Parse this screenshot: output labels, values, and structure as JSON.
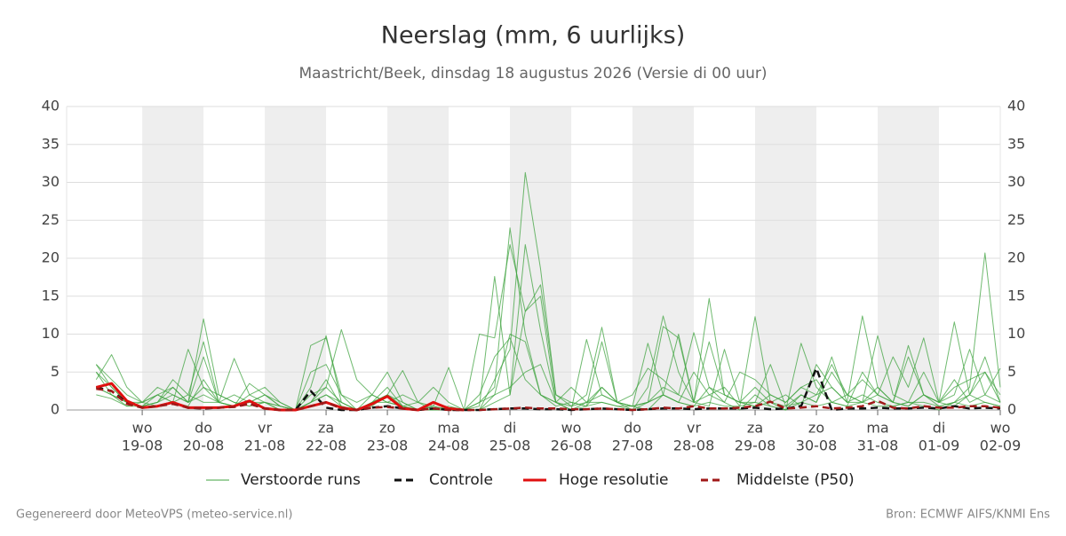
{
  "chart_data": {
    "type": "line",
    "title": "Neerslag (mm, 6 uurlijks)",
    "subtitle": "Maastricht/Beek, dinsdag 18 augustus 2026 (Versie di 00 uur)",
    "footer_left": "Gegenereerd door MeteoVPS (meteo-service.nl)",
    "footer_right": "Bron: ECMWF AIFS/KNMI Ens",
    "xlim": [
      -5.6,
      360
    ],
    "xticks": [
      {
        "value": 24,
        "label": "wo",
        "sublabel": "19-08"
      },
      {
        "value": 48,
        "label": "do",
        "sublabel": "20-08"
      },
      {
        "value": 72,
        "label": "vr",
        "sublabel": "21-08"
      },
      {
        "value": 96,
        "label": "za",
        "sublabel": "22-08"
      },
      {
        "value": 120,
        "label": "zo",
        "sublabel": "23-08"
      },
      {
        "value": 144,
        "label": "ma",
        "sublabel": "24-08"
      },
      {
        "value": 168,
        "label": "di",
        "sublabel": "25-08"
      },
      {
        "value": 192,
        "label": "wo",
        "sublabel": "26-08"
      },
      {
        "value": 216,
        "label": "do",
        "sublabel": "27-08"
      },
      {
        "value": 240,
        "label": "vr",
        "sublabel": "28-08"
      },
      {
        "value": 264,
        "label": "za",
        "sublabel": "29-08"
      },
      {
        "value": 288,
        "label": "zo",
        "sublabel": "30-08"
      },
      {
        "value": 312,
        "label": "ma",
        "sublabel": "31-08"
      },
      {
        "value": 336,
        "label": "di",
        "sublabel": "01-09"
      },
      {
        "value": 360,
        "label": "wo",
        "sublabel": "02-09"
      }
    ],
    "ylim": [
      0,
      40
    ],
    "yticks": [
      0,
      5,
      10,
      15,
      20,
      25,
      30,
      35,
      40
    ],
    "grid": true,
    "x": [
      6,
      12,
      18,
      24,
      30,
      36,
      42,
      48,
      54,
      60,
      66,
      72,
      78,
      84,
      90,
      96,
      102,
      108,
      114,
      120,
      126,
      132,
      138,
      144,
      150,
      156,
      162,
      168,
      174,
      180,
      186,
      192,
      198,
      204,
      210,
      216,
      222,
      228,
      234,
      240,
      246,
      252,
      258,
      264,
      270,
      276,
      282,
      288,
      294,
      300,
      306,
      312,
      318,
      324,
      330,
      336,
      342,
      348,
      354,
      360
    ],
    "ensemble": {
      "name": "Verstoorde runs",
      "color": "#3fa33f",
      "runs": [
        [
          5,
          3,
          1,
          0.5,
          1,
          2,
          1,
          12,
          2,
          1,
          0.5,
          1,
          0,
          0,
          3,
          9.8,
          1,
          0,
          0.5,
          2,
          0.5,
          0,
          0.5,
          0,
          0,
          0,
          4,
          8,
          31.3,
          18.6,
          2,
          0.5,
          1,
          3,
          1,
          0.5,
          0,
          2,
          1,
          0.5,
          3,
          1,
          0,
          2,
          0.5,
          0,
          8.8,
          3,
          1,
          0.5,
          5,
          2,
          1,
          0.5,
          2,
          0.5,
          1,
          3,
          20.7,
          3
        ],
        [
          6,
          4,
          2,
          1,
          0.5,
          1,
          8,
          3,
          1,
          0.5,
          1,
          2,
          0.5,
          0,
          1,
          3,
          10.6,
          4,
          2,
          1,
          0.5,
          1,
          0.5,
          0,
          0,
          10,
          9.5,
          21.8,
          13,
          15,
          1,
          0.5,
          2,
          10.9,
          1,
          0,
          3,
          12.4,
          5,
          1,
          14.7,
          2,
          1,
          0.5,
          1,
          0,
          2,
          1,
          5,
          2,
          1,
          3,
          1,
          0.5,
          2,
          1,
          11.6,
          2,
          7,
          1
        ],
        [
          4,
          7.3,
          3,
          1,
          2,
          3,
          1,
          2,
          1,
          6.8,
          2,
          1,
          0.5,
          0,
          8.5,
          9.5,
          2,
          0,
          1,
          2,
          5.2,
          1,
          0,
          0.5,
          0,
          0.5,
          17.6,
          2,
          21.8,
          10.5,
          1,
          0,
          9.3,
          2,
          1,
          0.5,
          1,
          2,
          10,
          1,
          2,
          3,
          0.5,
          12.3,
          1,
          2,
          0.5,
          6,
          3,
          1,
          12.4,
          3,
          1,
          8.5,
          2,
          1,
          4,
          1,
          2,
          5.5
        ],
        [
          3,
          2,
          1,
          0.5,
          1,
          4,
          2,
          9,
          1,
          0.5,
          2,
          3,
          1,
          0,
          1,
          4,
          0.5,
          0,
          2,
          5,
          1,
          0,
          1,
          0,
          0,
          1,
          3,
          24,
          10,
          2,
          0.5,
          1,
          0.5,
          9,
          1,
          0.5,
          1,
          11,
          9.5,
          1,
          0.5,
          8,
          1,
          1,
          6,
          0.5,
          2,
          1,
          7,
          1,
          1,
          9.8,
          2,
          1,
          5,
          1,
          0.5,
          2,
          5,
          1
        ],
        [
          2,
          1.5,
          0.5,
          1,
          3,
          2,
          1,
          7,
          1,
          0.5,
          3.5,
          2,
          0.5,
          0,
          1,
          2,
          1,
          0,
          1,
          3,
          0.5,
          0,
          0.5,
          5.6,
          0,
          0,
          1,
          2,
          13,
          16.5,
          2,
          1,
          0.5,
          3,
          1,
          2,
          5.5,
          4,
          2,
          10.2,
          3,
          2,
          1,
          0.5,
          2,
          1,
          3,
          2,
          6,
          2,
          1,
          2,
          7,
          3,
          9.5,
          1,
          2,
          8,
          2,
          1
        ],
        [
          3,
          2,
          1,
          1,
          2,
          1,
          0.5,
          4,
          1,
          2,
          1,
          2,
          1,
          0,
          5,
          6,
          2,
          1,
          2,
          1,
          2,
          1,
          3,
          1,
          0,
          2,
          7,
          9.5,
          4,
          2,
          1,
          3,
          1,
          2,
          1,
          0.5,
          8.8,
          2,
          1,
          5,
          2,
          1,
          5,
          4,
          2,
          1,
          3,
          4,
          1,
          2,
          4,
          2,
          1,
          7,
          2,
          1,
          3,
          4,
          5,
          2
        ],
        [
          5,
          2,
          0.5,
          0.5,
          1,
          3,
          1,
          3,
          2,
          1,
          0.5,
          1,
          0,
          0,
          2,
          3,
          1,
          0,
          1,
          2,
          1,
          0,
          0,
          0,
          0,
          1,
          2,
          3,
          5,
          6,
          1,
          0,
          1,
          1,
          0.5,
          0.5,
          1,
          3,
          2,
          1,
          9,
          2,
          1,
          3,
          1,
          0.5,
          1,
          2,
          3,
          1,
          2,
          1,
          0.5,
          1,
          1,
          0.5,
          1,
          2,
          1,
          0.5
        ],
        [
          6,
          3,
          1,
          0.5,
          2,
          1,
          2,
          1,
          1,
          0.5,
          1,
          1,
          0.5,
          0,
          1,
          2,
          0.5,
          0,
          1,
          1,
          0.5,
          0,
          0,
          0,
          0,
          0,
          2,
          10,
          9,
          2,
          1,
          0,
          0.5,
          1,
          0.5,
          0,
          1,
          2,
          1,
          0.5,
          1,
          0.5,
          0.5,
          1,
          0.5,
          0,
          1,
          0.5,
          1,
          0.5,
          1,
          0.5,
          0.5,
          1,
          0.5,
          0,
          1,
          0.5,
          1,
          0.5
        ]
      ]
    },
    "series": [
      {
        "name": "Controle",
        "color": "#111111",
        "dash": true,
        "values": [
          3,
          2.5,
          1,
          0.3,
          0.5,
          1,
          0.3,
          0.2,
          0.3,
          0.5,
          0.8,
          0.2,
          0,
          0,
          2.5,
          0.3,
          0,
          0,
          0.3,
          0.5,
          0.2,
          0,
          0.2,
          0,
          0,
          0,
          0.1,
          0.2,
          0.2,
          0.1,
          0.1,
          0,
          0.1,
          0.2,
          0.1,
          0,
          0.1,
          0.2,
          0.2,
          0.1,
          0.2,
          0.2,
          0.2,
          0.3,
          0.1,
          0.2,
          0.5,
          5.5,
          0,
          0.2,
          0.2,
          0.3,
          0.2,
          0.2,
          0.3,
          0.2,
          0.5,
          0.2,
          0.3,
          0.2
        ]
      },
      {
        "name": "Hoge resolutie",
        "color": "#e01010",
        "dash": false,
        "values": [
          3,
          3.5,
          1.2,
          0.3,
          0.5,
          1,
          0.3,
          0.3,
          0.3,
          0.5,
          1.2,
          0.2,
          0,
          0,
          0.5,
          1,
          0.3,
          0,
          0.8,
          1.8,
          0.2,
          0,
          1,
          0.2,
          0,
          null,
          null,
          null,
          null,
          null,
          null,
          null,
          null,
          null,
          null,
          null,
          null,
          null,
          null,
          null,
          null,
          null,
          null,
          null,
          null,
          null,
          null,
          null,
          null,
          null,
          null,
          null,
          null,
          null,
          null,
          null,
          null,
          null,
          null,
          null
        ]
      },
      {
        "name": "Middelste (P50)",
        "color": "#a01818",
        "dash": true,
        "values": [
          2.8,
          2.5,
          0.8,
          0.3,
          0.5,
          0.8,
          0.3,
          0.2,
          0.3,
          0.4,
          0.8,
          0.2,
          0,
          0,
          0.5,
          1,
          0.2,
          0,
          0.3,
          0.4,
          0.2,
          0,
          0.2,
          0,
          0,
          0,
          0.1,
          0.2,
          0.3,
          0.2,
          0.2,
          0.1,
          0.1,
          0.2,
          0.1,
          0,
          0.1,
          0.3,
          0.2,
          0.5,
          0.2,
          0.2,
          0.3,
          0.5,
          1.1,
          0.2,
          0.3,
          0.5,
          0.2,
          0.3,
          0.5,
          1.2,
          0.3,
          0.2,
          0.5,
          0.3,
          0.3,
          0.5,
          0.5,
          0.3
        ]
      }
    ]
  }
}
